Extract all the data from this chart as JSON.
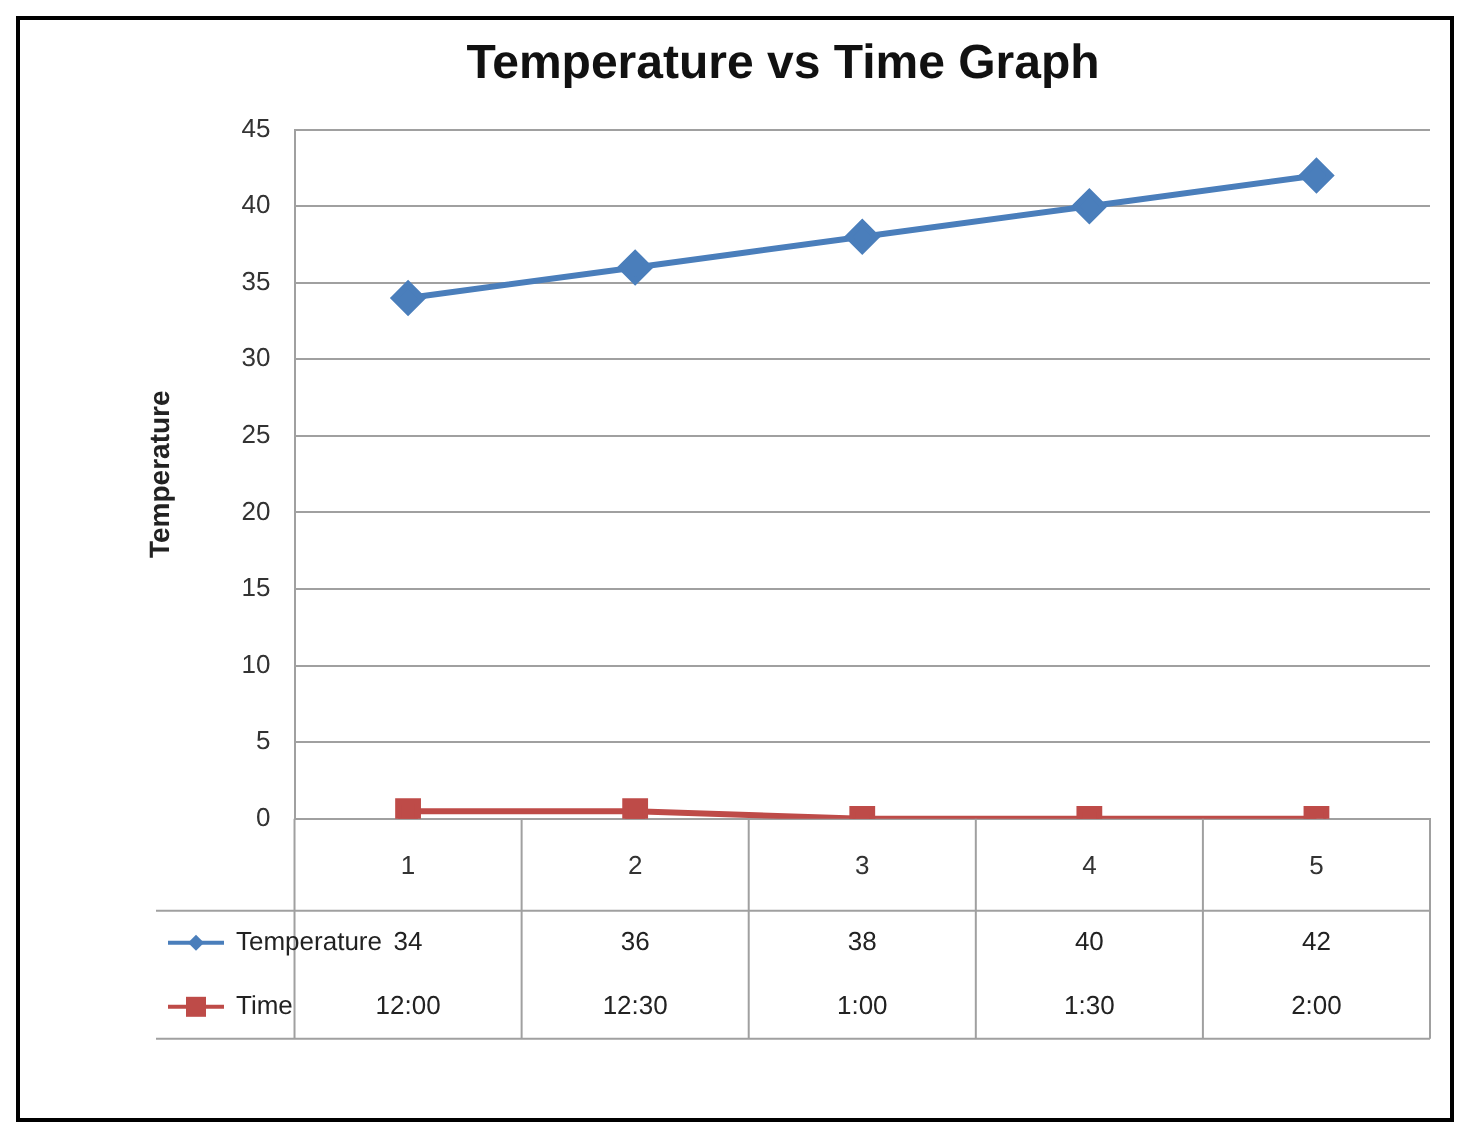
{
  "chart_data": {
    "type": "line",
    "title": "Temperature vs Time Graph",
    "ylabel": "Temperature",
    "categories": [
      "1",
      "2",
      "3",
      "4",
      "5"
    ],
    "series": [
      {
        "name": "Temperature",
        "color": "#4a7ebb",
        "marker": "diamond",
        "values": [
          34,
          36,
          38,
          40,
          42
        ],
        "value_labels": [
          "34",
          "36",
          "38",
          "40",
          "42"
        ]
      },
      {
        "name": "Time",
        "color": "#be4b48",
        "marker": "square",
        "values": [
          0.5,
          0.5,
          0,
          0,
          0
        ]
      }
    ],
    "annotations": [
      "12:00",
      "12:30",
      "1:00",
      "1:30",
      "2:00"
    ],
    "ylim": [
      0,
      45
    ],
    "yticks": [
      0,
      5,
      10,
      15,
      20,
      25,
      30,
      35,
      40,
      45
    ],
    "grid": "y",
    "legend": "bottom"
  }
}
